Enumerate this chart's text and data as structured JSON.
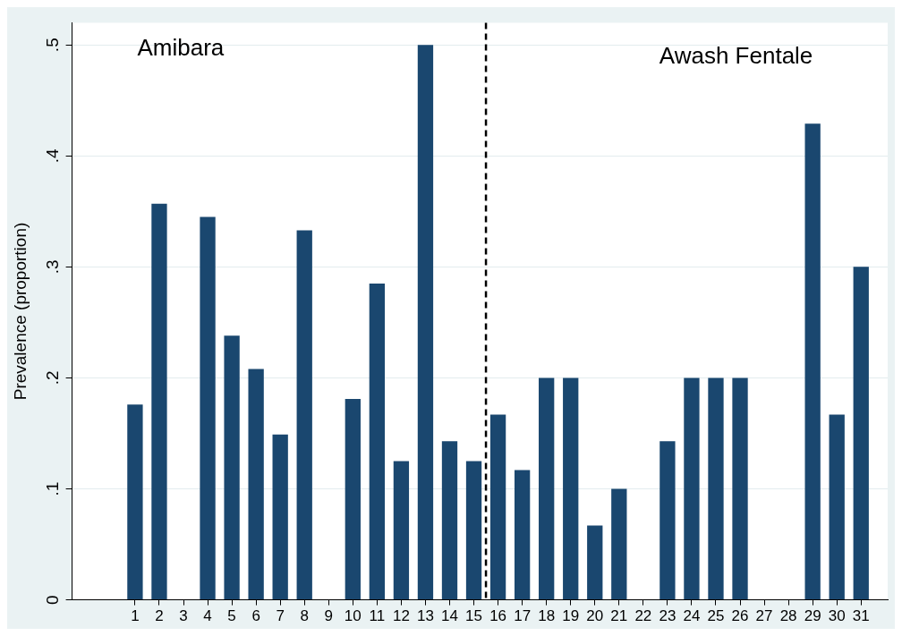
{
  "chart_data": {
    "type": "bar",
    "ylabel": "Prevalence (proportion)",
    "x": [
      1,
      2,
      3,
      4,
      5,
      6,
      7,
      8,
      9,
      10,
      11,
      12,
      13,
      14,
      15,
      16,
      17,
      18,
      19,
      20,
      21,
      22,
      23,
      24,
      25,
      26,
      27,
      28,
      29,
      30,
      31
    ],
    "values": [
      0.176,
      0.357,
      0,
      0.345,
      0.238,
      0.208,
      0.149,
      0.333,
      0,
      0.181,
      0.285,
      0.125,
      0.5,
      0.143,
      0.125,
      0.167,
      0.117,
      0.2,
      0.2,
      0.067,
      0.1,
      0,
      0.143,
      0.2,
      0.2,
      0.2,
      0,
      0,
      0.429,
      0.167,
      0.3
    ],
    "color": "#1a476f",
    "xlim": [
      -1.6,
      32.1
    ],
    "xticks": [
      1,
      2,
      3,
      4,
      5,
      6,
      7,
      8,
      9,
      10,
      11,
      12,
      13,
      14,
      15,
      16,
      17,
      18,
      19,
      20,
      21,
      22,
      23,
      24,
      25,
      26,
      27,
      28,
      29,
      30,
      31
    ],
    "ylim": [
      0,
      0.52
    ],
    "yticks": [
      0,
      {
        "value": 0.1,
        "label": ".1"
      },
      {
        "value": 0.2,
        "label": ".2"
      },
      {
        "value": 0.3,
        "label": ".3"
      },
      {
        "value": 0.4,
        "label": ".4"
      },
      {
        "value": 0.5,
        "label": ".5"
      }
    ],
    "grid": "y",
    "ref_lines": [
      {
        "axis": "x",
        "value": 15.5,
        "color": "#000000",
        "line_style": "dashed"
      }
    ],
    "annotations": [
      "Amibara",
      "Awash Fentale"
    ]
  }
}
